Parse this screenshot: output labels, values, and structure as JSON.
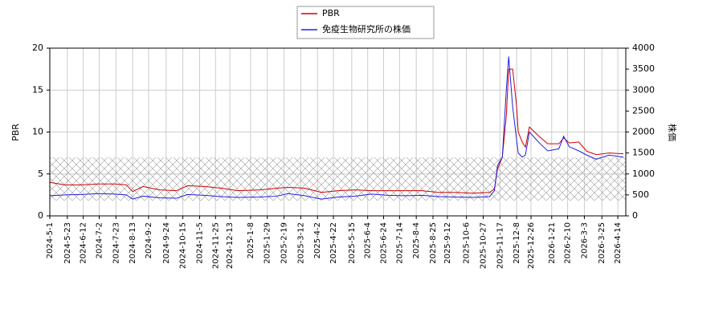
{
  "chart_data": {
    "type": "line",
    "x": [
      "2024-05-01",
      "2024-05-20",
      "2024-06-10",
      "2024-07-01",
      "2024-07-22",
      "2024-08-05",
      "2024-08-13",
      "2024-08-26",
      "2024-09-16",
      "2024-10-07",
      "2024-10-21",
      "2024-11-11",
      "2024-12-02",
      "2024-12-23",
      "2025-01-20",
      "2025-02-10",
      "2025-02-24",
      "2025-03-17",
      "2025-04-07",
      "2025-04-28",
      "2025-05-19",
      "2025-06-09",
      "2025-06-30",
      "2025-07-21",
      "2025-08-11",
      "2025-09-01",
      "2025-09-22",
      "2025-10-14",
      "2025-11-04",
      "2025-11-10",
      "2025-11-14",
      "2025-11-20",
      "2025-11-25",
      "2025-11-28",
      "2025-12-03",
      "2025-12-08",
      "2025-12-10",
      "2025-12-15",
      "2025-12-19",
      "2025-12-24",
      "2026-01-05",
      "2026-01-16",
      "2026-01-30",
      "2026-02-05",
      "2026-02-12",
      "2026-02-24",
      "2026-03-06",
      "2026-03-18",
      "2026-04-03",
      "2026-04-21"
    ],
    "series": [
      {
        "name": "PBR",
        "color": "#d00000",
        "axis": "y",
        "values": [
          4.0,
          3.7,
          3.7,
          3.8,
          3.8,
          3.7,
          2.9,
          3.5,
          3.1,
          3.0,
          3.6,
          3.5,
          3.3,
          3.0,
          3.1,
          3.3,
          3.4,
          3.3,
          2.8,
          3.0,
          3.1,
          3.0,
          3.0,
          3.0,
          3.0,
          2.8,
          2.8,
          2.7,
          2.8,
          3.2,
          5.6,
          7.0,
          11.9,
          17.5,
          17.5,
          13.0,
          10.0,
          8.8,
          8.2,
          10.6,
          9.5,
          8.6,
          8.6,
          9.3,
          8.7,
          8.8,
          7.7,
          7.3,
          7.5,
          7.4
        ]
      },
      {
        "name": "免疫生物研究所の株価",
        "color": "#2020e0",
        "axis": "y2",
        "values": [
          480,
          500,
          510,
          530,
          520,
          500,
          400,
          470,
          430,
          420,
          510,
          490,
          460,
          440,
          450,
          470,
          530,
          480,
          400,
          450,
          470,
          520,
          490,
          480,
          490,
          460,
          450,
          440,
          460,
          600,
          1200,
          1400,
          3000,
          3800,
          2600,
          1800,
          1500,
          1400,
          1450,
          2000,
          1750,
          1550,
          1600,
          1900,
          1650,
          1550,
          1450,
          1350,
          1450,
          1400
        ]
      }
    ],
    "xlim": [
      "2024-05-01",
      "2026-04-24"
    ],
    "xticks": [
      "2024-5-1",
      "2024-5-23",
      "2024-6-12",
      "2024-7-2",
      "2024-7-23",
      "2024-8-13",
      "2024-9-2",
      "2024-9-24",
      "2024-10-15",
      "2024-11-5",
      "2024-11-25",
      "2024-12-13",
      "2025-1-8",
      "2025-1-29",
      "2025-2-19",
      "2025-3-12",
      "2025-4-2",
      "2025-4-22",
      "2025-5-15",
      "2025-6-4",
      "2025-6-24",
      "2025-7-14",
      "2025-8-4",
      "2025-8-25",
      "2025-9-12",
      "2025-10-6",
      "2025-10-27",
      "2025-11-17",
      "2025-12-8",
      "2025-12-26",
      "2026-1-21",
      "2026-2-10",
      "2026-3-3",
      "2026-3-25",
      "2026-4-14"
    ],
    "ylabel": "PBR",
    "ylim": [
      0,
      20
    ],
    "yticks": [
      0,
      5,
      10,
      15,
      20
    ],
    "y2label": "株価",
    "y2lim": [
      0,
      4000
    ],
    "y2ticks": [
      0,
      500,
      1000,
      1500,
      2000,
      2500,
      3000,
      3500,
      4000
    ],
    "grid": true
  }
}
